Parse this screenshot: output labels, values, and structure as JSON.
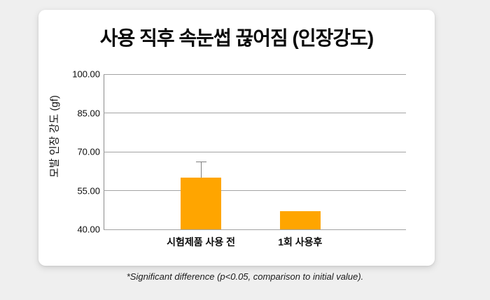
{
  "page": {
    "background_color": "#efefef",
    "card_color": "#ffffff",
    "footnote": "*Significant difference (p<0.05, comparison to initial value)."
  },
  "chart_data": {
    "type": "bar",
    "title": "사용 직후 속눈썹 끊어짐 (인장강도)",
    "ylabel": "모발 인장 강도 (gf)",
    "xlabel": "",
    "categories": [
      "시험제품 사용 전",
      "1회 사용후"
    ],
    "values": [
      60.1,
      46.9
    ],
    "error_plus": [
      6.0,
      0
    ],
    "ylim": [
      40,
      100
    ],
    "yticks": [
      100,
      85,
      70,
      55,
      40
    ],
    "ytick_labels": [
      "100.00",
      "85.00",
      "70.00",
      "55.00",
      "40.00"
    ],
    "grid": true,
    "legend_position": "none",
    "bar_color": "#FFA500",
    "gridline_color": "#a3a3a3",
    "error_bar_color": "#7f7f7f"
  }
}
